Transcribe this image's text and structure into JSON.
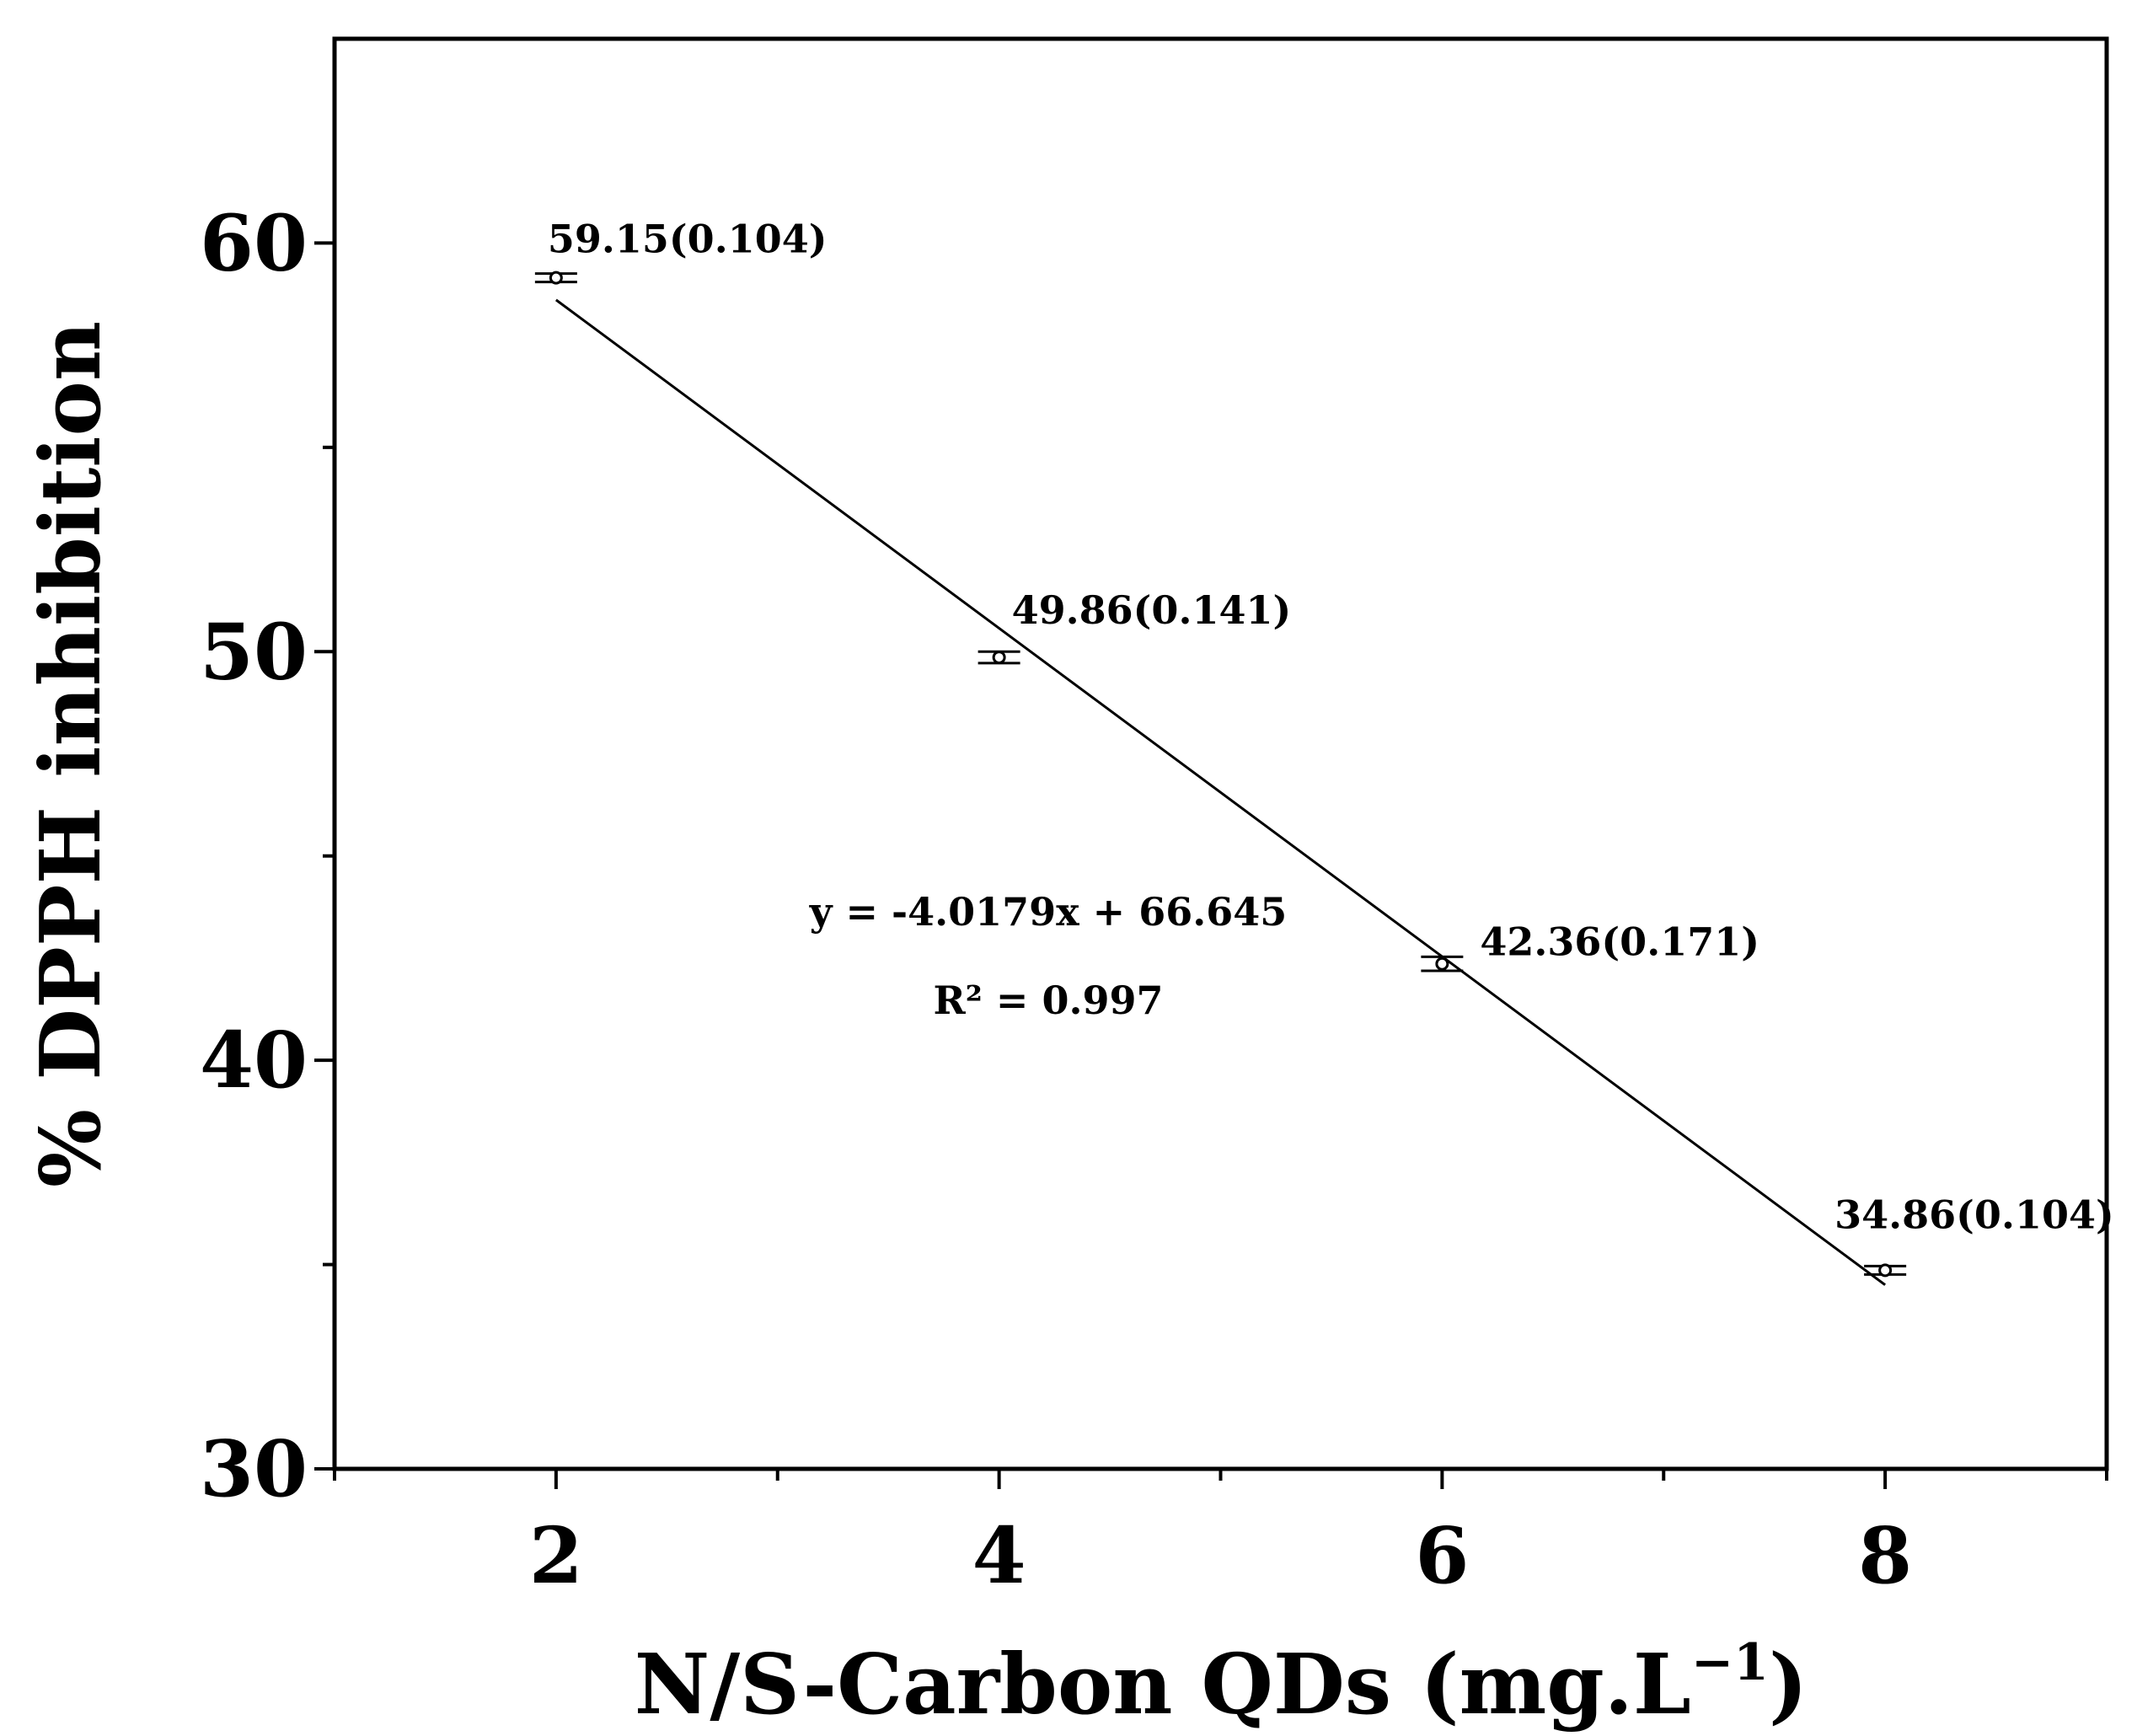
{
  "chart_data": {
    "type": "scatter",
    "title": "",
    "xlabel": "N/S-Carbon QDs (mg.L",
    "xlabel_superscript": "−1",
    "xlabel_suffix": ")",
    "ylabel": "% DPPH inhibition",
    "xlim": [
      1,
      9
    ],
    "ylim": [
      30,
      65
    ],
    "x_ticks": [
      2,
      4,
      6,
      8
    ],
    "x_minor_ticks": [
      1,
      3,
      5,
      7,
      9
    ],
    "y_ticks": [
      30,
      40,
      50,
      60
    ],
    "y_minor_ticks": [
      35,
      45,
      55
    ],
    "series": [
      {
        "name": "DPPH inhibition",
        "x": [
          2,
          4,
          6,
          8
        ],
        "y": [
          59.15,
          49.86,
          42.36,
          34.86
        ],
        "error": [
          0.104,
          0.141,
          0.171,
          0.104
        ],
        "labels": [
          "59.15(0.104)",
          "49.86(0.141)",
          "42.36(0.171)",
          "34.86(0.104)"
        ]
      }
    ],
    "fit": {
      "slope": -4.0179,
      "intercept": 66.645,
      "x_range": [
        2,
        8
      ],
      "equation": "y = -4.0179x + 66.645",
      "r2_label": "R² = 0.997"
    },
    "grid": false,
    "legend": "none",
    "colors": {
      "line": "#000000",
      "marker": "#000000",
      "background": "#ffffff"
    }
  }
}
